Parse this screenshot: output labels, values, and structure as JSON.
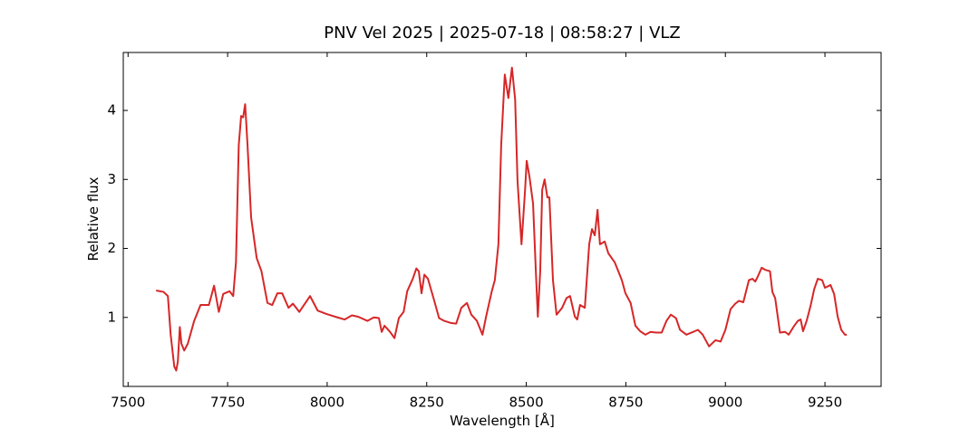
{
  "chart_data": {
    "type": "line",
    "title": "PNV Vel 2025 | 2025-07-18 | 08:58:27 | VLZ",
    "x_label": "Wavelength [Å]",
    "y_label": "Relative flux",
    "color": "#d62728",
    "x": [
      7570.5,
      7589,
      7600,
      7607,
      7616,
      7621,
      7625,
      7630,
      7634,
      7641,
      7650,
      7666,
      7682,
      7703,
      7716,
      7728,
      7739,
      7755,
      7764,
      7771,
      7778,
      7784,
      7789,
      7794,
      7800,
      7809,
      7823,
      7835,
      7850,
      7862,
      7875,
      7887,
      7903,
      7914,
      7930,
      7957,
      7976,
      7998,
      8026,
      8044,
      8062,
      8078,
      8101,
      8117,
      8130,
      8137,
      8144,
      8158,
      8169,
      8180,
      8192,
      8201,
      8215,
      8224,
      8230,
      8237,
      8244,
      8253,
      8267,
      8281,
      8294,
      8310,
      8324,
      8337,
      8351,
      8362,
      8376,
      8390,
      8399,
      8413,
      8421,
      8430,
      8437,
      8446,
      8455,
      8464,
      8472,
      8478,
      8488,
      8497,
      8501,
      8508,
      8517,
      8524,
      8529,
      8535,
      8540,
      8546,
      8553,
      8558,
      8567,
      8576,
      8590,
      8601,
      8610,
      8622,
      8628,
      8635,
      8647,
      8658,
      8665,
      8672,
      8679,
      8685,
      8697,
      8706,
      8722,
      8731,
      8740,
      8749,
      8762,
      8774,
      8786,
      8799,
      8812,
      8826,
      8840,
      8852,
      8863,
      8876,
      8886,
      8902,
      8919,
      8931,
      8943,
      8959,
      8975,
      8988,
      9000,
      9013,
      9025,
      9034,
      9045,
      9059,
      9068,
      9075,
      9082,
      9091,
      9100,
      9112,
      9118,
      9125,
      9137,
      9150,
      9159,
      9173,
      9182,
      9189,
      9195,
      9204,
      9214,
      9223,
      9232,
      9243,
      9250,
      9264,
      9273,
      9282,
      9291,
      9300,
      9305
    ],
    "values": [
      1.39,
      1.37,
      1.31,
      0.75,
      0.29,
      0.23,
      0.36,
      0.86,
      0.62,
      0.52,
      0.62,
      0.95,
      1.18,
      1.18,
      1.46,
      1.08,
      1.34,
      1.38,
      1.31,
      1.8,
      3.5,
      3.92,
      3.9,
      4.09,
      3.5,
      2.45,
      1.86,
      1.67,
      1.21,
      1.18,
      1.35,
      1.35,
      1.14,
      1.2,
      1.08,
      1.31,
      1.1,
      1.05,
      1.0,
      0.97,
      1.03,
      1.01,
      0.95,
      1.0,
      0.99,
      0.79,
      0.88,
      0.79,
      0.7,
      0.99,
      1.08,
      1.38,
      1.56,
      1.71,
      1.67,
      1.35,
      1.62,
      1.56,
      1.28,
      0.99,
      0.95,
      0.92,
      0.91,
      1.14,
      1.21,
      1.04,
      0.95,
      0.75,
      1.01,
      1.37,
      1.54,
      2.06,
      3.5,
      4.52,
      4.18,
      4.62,
      4.16,
      2.98,
      2.06,
      2.85,
      3.27,
      3.04,
      2.65,
      1.67,
      1.01,
      1.67,
      2.85,
      3.0,
      2.74,
      2.74,
      1.54,
      1.04,
      1.14,
      1.28,
      1.31,
      1.01,
      0.97,
      1.18,
      1.14,
      2.06,
      2.28,
      2.19,
      2.56,
      2.06,
      2.1,
      1.93,
      1.8,
      1.67,
      1.54,
      1.35,
      1.21,
      0.88,
      0.8,
      0.75,
      0.79,
      0.78,
      0.78,
      0.95,
      1.04,
      0.99,
      0.82,
      0.75,
      0.79,
      0.82,
      0.75,
      0.58,
      0.67,
      0.65,
      0.82,
      1.12,
      1.2,
      1.24,
      1.22,
      1.54,
      1.56,
      1.52,
      1.6,
      1.72,
      1.69,
      1.67,
      1.37,
      1.28,
      0.78,
      0.79,
      0.75,
      0.88,
      0.95,
      0.97,
      0.8,
      0.95,
      1.17,
      1.41,
      1.56,
      1.54,
      1.43,
      1.47,
      1.34,
      1.01,
      0.82,
      0.75,
      0.75
    ],
    "xlim": [
      7488,
      9391
    ],
    "ylim": [
      0.0,
      4.84
    ],
    "xticks": [
      7500,
      7750,
      8000,
      8250,
      8500,
      8750,
      9000,
      9250
    ],
    "yticks": [
      1,
      2,
      3,
      4
    ]
  }
}
